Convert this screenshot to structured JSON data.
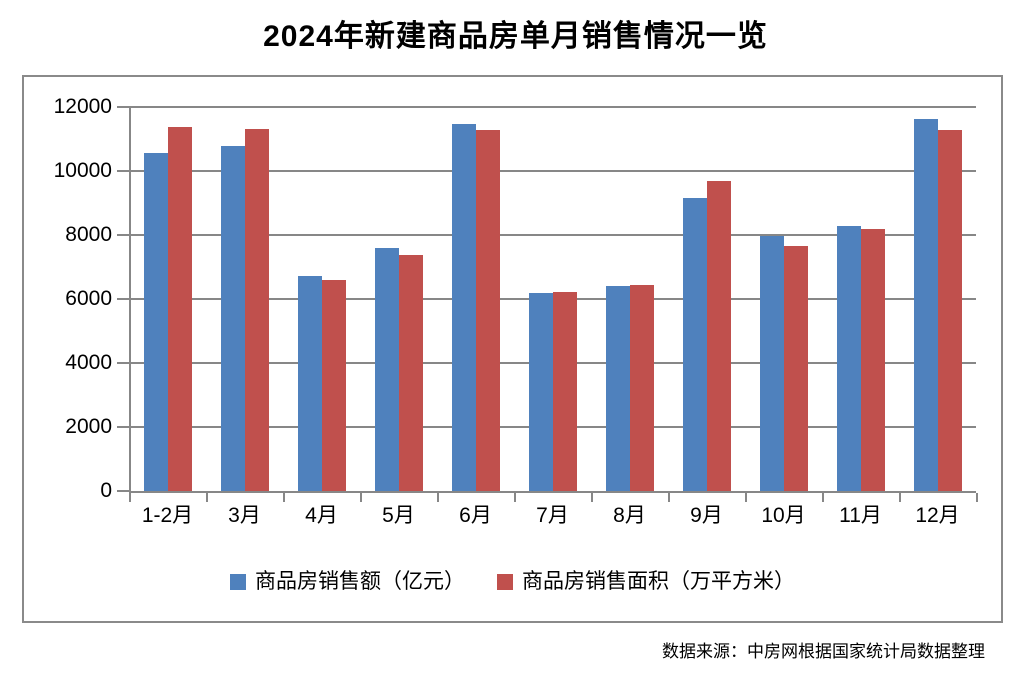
{
  "title": "2024年新建商品房单月销售情况一览",
  "source_note": "数据来源：中房网根据国家统计局数据整理",
  "chart_data": {
    "type": "bar",
    "title": "2024年新建商品房单月销售情况一览",
    "categories": [
      "1-2月",
      "3月",
      "4月",
      "5月",
      "6月",
      "7月",
      "8月",
      "9月",
      "10月",
      "11月",
      "12月"
    ],
    "series": [
      {
        "name": "商品房销售额（亿元）",
        "color": "#4F81BD",
        "values": [
          10566,
          10789,
          6712,
          7598,
          11468,
          6197,
          6393,
          9157,
          7975,
          8270,
          11625
        ]
      },
      {
        "name": "商品房销售面积（万平方米）",
        "color": "#C0504D",
        "values": [
          11369,
          11299,
          6584,
          7390,
          11274,
          6233,
          6453,
          9682,
          7646,
          8188,
          11267
        ]
      }
    ],
    "xlabel": "",
    "ylabel": "",
    "ylim": [
      0,
      12000
    ],
    "yticks": [
      0,
      2000,
      4000,
      6000,
      8000,
      10000,
      12000
    ],
    "grid": true,
    "legend_position": "bottom"
  }
}
